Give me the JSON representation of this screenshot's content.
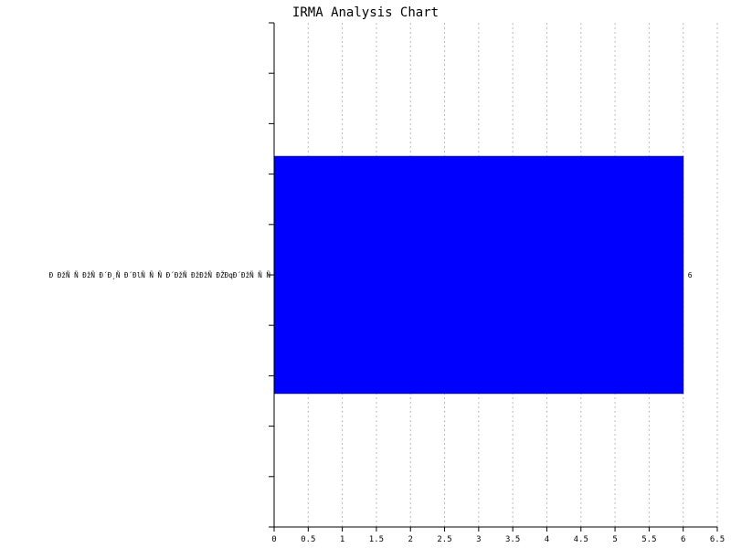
{
  "chart_data": {
    "type": "bar",
    "orientation": "horizontal",
    "title": "IRMA Analysis Chart",
    "xlabel": "",
    "ylabel": "",
    "categories": [
      "Ð ÐžÑ Ñ ÐžÑ Ð´Ð¸Ñ  Ð´ÐlÑ Ñ Ñ Ð´ÐžÑ ÐžÐžÑ ÐŽÐqÐ´ÐžÑ Ñ Ñ"
    ],
    "values": [
      6
    ],
    "data_labels": [
      "6"
    ],
    "xlim": [
      0,
      6.5
    ],
    "xticks": [
      "0",
      "0.5",
      "1",
      "1.5",
      "2",
      "2.5",
      "3",
      "3.5",
      "4",
      "4.5",
      "5",
      "5.5",
      "6",
      "6.5"
    ],
    "grid": "vertical-dotted",
    "bar_color": "#0000ff"
  }
}
